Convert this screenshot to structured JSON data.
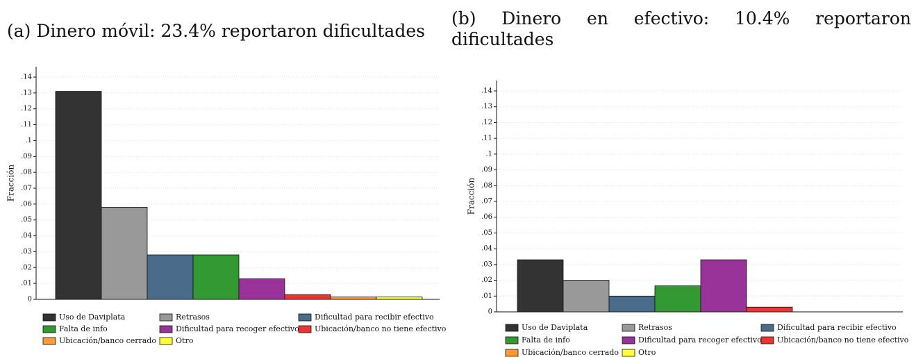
{
  "chart_data": [
    {
      "type": "bar",
      "title": "(a) Dinero móvil: 23.4% reportaron dificultades",
      "y_label": "Fracción",
      "categories": [
        "Uso de Daviplata",
        "Retrasos",
        "Dificultad para recibir efectivo",
        "Falta de info",
        "Dificultad para recoger efectivo",
        "Ubicación/banco no tiene efectivo",
        "Ubicación/banco cerrado",
        "Otro"
      ],
      "colors": [
        "#333333",
        "#999999",
        "#4a6b8a",
        "#339933",
        "#993399",
        "#ee3333",
        "#ff9933",
        "#ffff33"
      ],
      "values": [
        0.131,
        0.058,
        0.028,
        0.028,
        0.013,
        0.003,
        0.0015,
        0.0015
      ],
      "ylim": [
        0,
        0.14
      ],
      "yticks": [
        0,
        {
          "value": 0.01,
          "label": ".01"
        },
        {
          "value": 0.02,
          "label": ".02"
        },
        {
          "value": 0.03,
          "label": ".03"
        },
        {
          "value": 0.04,
          "label": ".04"
        },
        {
          "value": 0.05,
          "label": ".05"
        },
        {
          "value": 0.06,
          "label": ".06"
        },
        {
          "value": 0.07,
          "label": ".07"
        },
        {
          "value": 0.08,
          "label": ".08"
        },
        {
          "value": 0.09,
          "label": ".09"
        },
        {
          "value": 0.1,
          "label": ".1"
        },
        {
          "value": 0.11,
          "label": ".11"
        },
        {
          "value": 0.12,
          "label": ".12"
        },
        {
          "value": 0.13,
          "label": ".13"
        },
        {
          "value": 0.14,
          "label": ".14"
        }
      ],
      "grid": true
    },
    {
      "type": "bar",
      "title": "(b) Dinero en efectivo: 10.4% reportaron dificultades",
      "y_label": "Fracción",
      "categories": [
        "Uso de Daviplata",
        "Retrasos",
        "Dificultad para recibir efectivo",
        "Falta de info",
        "Dificultad para recoger efectivo",
        "Ubicación/banco no tiene efectivo",
        "Ubicación/banco cerrado",
        "Otro"
      ],
      "colors": [
        "#333333",
        "#999999",
        "#4a6b8a",
        "#339933",
        "#993399",
        "#ee3333",
        "#ff9933",
        "#ffff33"
      ],
      "values": [
        0.033,
        0.02,
        0.01,
        0.0165,
        0.033,
        0.003,
        0,
        0
      ],
      "ylim": [
        0,
        0.14
      ],
      "yticks": [
        0,
        {
          "value": 0.01,
          "label": ".01"
        },
        {
          "value": 0.02,
          "label": ".02"
        },
        {
          "value": 0.03,
          "label": ".03"
        },
        {
          "value": 0.04,
          "label": ".04"
        },
        {
          "value": 0.05,
          "label": ".05"
        },
        {
          "value": 0.06,
          "label": ".06"
        },
        {
          "value": 0.07,
          "label": ".07"
        },
        {
          "value": 0.08,
          "label": ".08"
        },
        {
          "value": 0.09,
          "label": ".09"
        },
        {
          "value": 0.1,
          "label": ".1"
        },
        {
          "value": 0.11,
          "label": ".11"
        },
        {
          "value": 0.12,
          "label": ".12"
        },
        {
          "value": 0.13,
          "label": ".13"
        },
        {
          "value": 0.14,
          "label": ".14"
        }
      ],
      "grid": true
    }
  ]
}
